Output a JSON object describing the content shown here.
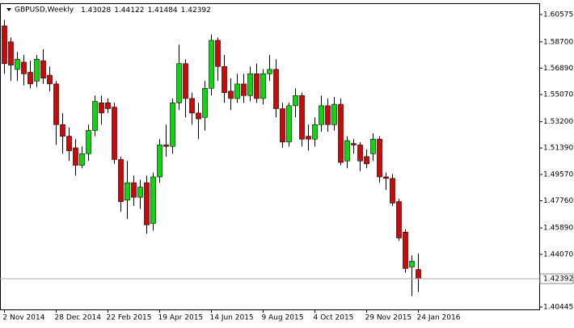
{
  "chart_data": {
    "type": "candlestick",
    "title": "GBPUSD,Weekly",
    "categories": [
      "2 Nov 2014",
      null,
      null,
      null,
      null,
      null,
      null,
      null,
      "28 Dec 2014",
      null,
      null,
      null,
      null,
      null,
      null,
      null,
      "22 Feb 2015",
      null,
      null,
      null,
      null,
      null,
      null,
      null,
      "19 Apr 2015",
      null,
      null,
      null,
      null,
      null,
      null,
      null,
      "14 Jun 2015",
      null,
      null,
      null,
      null,
      null,
      null,
      null,
      "9 Aug 2015",
      null,
      null,
      null,
      null,
      null,
      null,
      null,
      "4 Oct 2015",
      null,
      null,
      null,
      null,
      null,
      null,
      null,
      "29 Nov 2015",
      null,
      null,
      null,
      null,
      null,
      null,
      null,
      "24 Jan 2016"
    ],
    "open": [
      1.598,
      1.587,
      1.568,
      1.573,
      1.566,
      1.56,
      1.574,
      1.564,
      1.558,
      1.53,
      1.522,
      1.514,
      1.502,
      1.51,
      1.526,
      1.545,
      1.545,
      1.542,
      1.506,
      1.478,
      1.49,
      1.48,
      1.49,
      1.462,
      1.494,
      1.516,
      1.515,
      1.545,
      1.572,
      1.548,
      1.538,
      1.535,
      1.555,
      1.588,
      1.57,
      1.553,
      1.548,
      1.558,
      1.55,
      1.565,
      1.548,
      1.565,
      1.568,
      1.541,
      1.518,
      1.543,
      1.55,
      1.522,
      1.52,
      1.53,
      1.543,
      1.53,
      1.544,
      1.505,
      1.517,
      1.516,
      1.508,
      1.51,
      1.52,
      1.494,
      1.493,
      1.477,
      1.456,
      1.432,
      1.43028
    ],
    "high": [
      1.602,
      1.59,
      1.58,
      1.578,
      1.574,
      1.578,
      1.582,
      1.57,
      1.56,
      1.538,
      1.528,
      1.52,
      1.515,
      1.53,
      1.55,
      1.55,
      1.548,
      1.545,
      1.508,
      1.505,
      1.495,
      1.492,
      1.495,
      1.497,
      1.52,
      1.53,
      1.548,
      1.585,
      1.575,
      1.552,
      1.545,
      1.56,
      1.592,
      1.59,
      1.578,
      1.562,
      1.565,
      1.565,
      1.57,
      1.572,
      1.568,
      1.578,
      1.575,
      1.545,
      1.545,
      1.555,
      1.552,
      1.53,
      1.535,
      1.55,
      1.548,
      1.549,
      1.548,
      1.522,
      1.52,
      1.518,
      1.513,
      1.524,
      1.522,
      1.497,
      1.496,
      1.479,
      1.458,
      1.44,
      1.44122
    ],
    "low": [
      1.565,
      1.56,
      1.56,
      1.557,
      1.555,
      1.556,
      1.558,
      1.553,
      1.516,
      1.51,
      1.505,
      1.495,
      1.5,
      1.505,
      1.522,
      1.53,
      1.538,
      1.503,
      1.47,
      1.465,
      1.474,
      1.472,
      1.455,
      1.457,
      1.49,
      1.508,
      1.51,
      1.54,
      1.535,
      1.53,
      1.52,
      1.526,
      1.55,
      1.56,
      1.545,
      1.54,
      1.545,
      1.545,
      1.546,
      1.545,
      1.544,
      1.56,
      1.535,
      1.514,
      1.515,
      1.535,
      1.515,
      1.512,
      1.515,
      1.525,
      1.525,
      1.526,
      1.502,
      1.5,
      1.51,
      1.498,
      1.5,
      1.505,
      1.49,
      1.485,
      1.474,
      1.45,
      1.428,
      1.412,
      1.41484
    ],
    "close": [
      1.572,
      1.571,
      1.575,
      1.565,
      1.558,
      1.575,
      1.562,
      1.558,
      1.53,
      1.522,
      1.512,
      1.502,
      1.51,
      1.526,
      1.546,
      1.538,
      1.541,
      1.506,
      1.477,
      1.49,
      1.48,
      1.487,
      1.461,
      1.494,
      1.516,
      1.515,
      1.545,
      1.572,
      1.548,
      1.538,
      1.534,
      1.555,
      1.588,
      1.57,
      1.552,
      1.548,
      1.558,
      1.55,
      1.565,
      1.548,
      1.565,
      1.568,
      1.541,
      1.518,
      1.543,
      1.55,
      1.52,
      1.52,
      1.53,
      1.543,
      1.53,
      1.544,
      1.504,
      1.519,
      1.516,
      1.505,
      1.503,
      1.52,
      1.494,
      1.493,
      1.476,
      1.452,
      1.431,
      1.436,
      1.42392
    ],
    "up_color": "#00e000",
    "down_color": "#dd0000",
    "ylim": [
      1.4028,
      1.613
    ],
    "yticks": [
      1.60575,
      {
        "value": 1.587,
        "label": "1.58700"
      },
      {
        "value": 1.5689,
        "label": "1.56890"
      },
      {
        "value": 1.5507,
        "label": "1.55070"
      },
      {
        "value": 1.532,
        "label": "1.53200"
      },
      {
        "value": 1.5139,
        "label": "1.51390"
      },
      {
        "value": 1.4957,
        "label": "1.49570"
      },
      {
        "value": 1.4776,
        "label": "1.47760"
      },
      {
        "value": 1.4589,
        "label": "1.45890"
      },
      {
        "value": 1.4407,
        "label": "1.44070"
      },
      1.40445
    ]
  }
}
